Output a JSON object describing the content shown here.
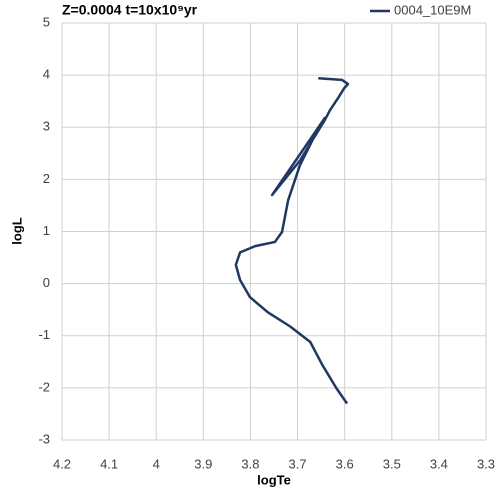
{
  "chart_data": {
    "type": "line",
    "title": "Z=0.0004 t=10x10⁹yr",
    "x_label": "logTe",
    "y_label": "logL",
    "x": [
      3.595,
      3.618,
      3.648,
      3.673,
      3.716,
      3.763,
      3.801,
      3.822,
      3.831,
      3.822,
      3.79,
      3.748,
      3.733,
      3.72,
      3.695,
      3.663,
      3.642,
      3.754,
      3.695,
      3.642,
      3.631,
      3.614,
      3.601,
      3.593,
      3.606,
      3.656
    ],
    "series": [
      {
        "name": "0004_10E9M",
        "color": "#1f3864",
        "values": [
          -2.3,
          -2.0,
          -1.55,
          -1.12,
          -0.82,
          -0.55,
          -0.26,
          0.07,
          0.36,
          0.6,
          0.72,
          0.8,
          0.99,
          1.6,
          2.27,
          2.85,
          3.18,
          1.7,
          2.36,
          3.14,
          3.33,
          3.56,
          3.75,
          3.83,
          3.91,
          3.94
        ]
      }
    ],
    "xlim": [
      4.2,
      3.3
    ],
    "xticks": [
      4.2,
      4.1,
      4,
      3.9,
      3.8,
      3.7,
      3.6,
      3.5,
      3.4,
      3.3
    ],
    "ylim": [
      -3,
      5
    ],
    "yticks": [
      -3,
      -2,
      -1,
      0,
      1,
      2,
      3,
      4,
      5
    ],
    "grid": true,
    "legend": "top-right"
  }
}
